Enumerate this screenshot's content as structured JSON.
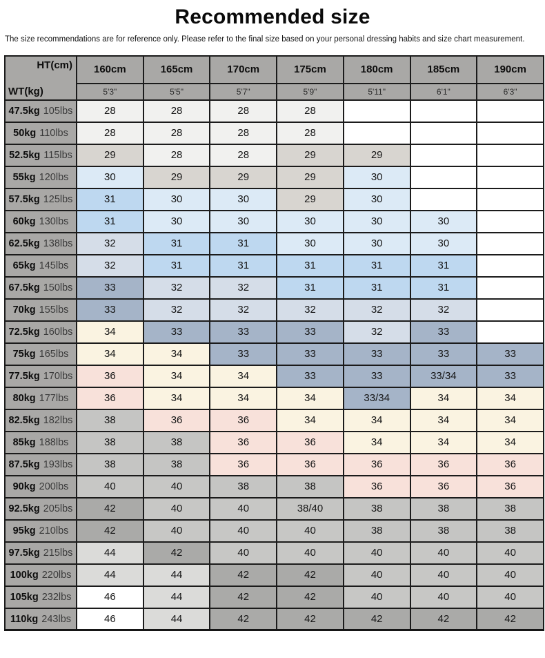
{
  "page": {
    "title": "Recommended size",
    "disclaimer": "The size recommendations are for reference only. Please refer to the final size based on your personal dressing habits and size chart measurement."
  },
  "table": {
    "corner": {
      "ht_label": "HT(cm)",
      "wt_label": "WT(kg)"
    },
    "heights": [
      {
        "cm": "160cm",
        "ft": "5'3\""
      },
      {
        "cm": "165cm",
        "ft": "5'5\""
      },
      {
        "cm": "170cm",
        "ft": "5'7\""
      },
      {
        "cm": "175cm",
        "ft": "5'9\""
      },
      {
        "cm": "180cm",
        "ft": "5'11\""
      },
      {
        "cm": "185cm",
        "ft": "6'1\""
      },
      {
        "cm": "190cm",
        "ft": "6'3\""
      }
    ],
    "rows": [
      {
        "kg": "47.5kg",
        "lbs": "105lbs",
        "sizes": [
          "28",
          "28",
          "28",
          "28",
          "",
          "",
          ""
        ]
      },
      {
        "kg": "50kg",
        "lbs": "110lbs",
        "sizes": [
          "28",
          "28",
          "28",
          "28",
          "",
          "",
          ""
        ]
      },
      {
        "kg": "52.5kg",
        "lbs": "115lbs",
        "sizes": [
          "29",
          "28",
          "28",
          "29",
          "29",
          "",
          ""
        ]
      },
      {
        "kg": "55kg",
        "lbs": "120lbs",
        "sizes": [
          "30",
          "29",
          "29",
          "29",
          "30",
          "",
          ""
        ]
      },
      {
        "kg": "57.5kg",
        "lbs": "125lbs",
        "sizes": [
          "31",
          "30",
          "30",
          "29",
          "30",
          "",
          ""
        ]
      },
      {
        "kg": "60kg",
        "lbs": "130lbs",
        "sizes": [
          "31",
          "30",
          "30",
          "30",
          "30",
          "30",
          ""
        ]
      },
      {
        "kg": "62.5kg",
        "lbs": "138lbs",
        "sizes": [
          "32",
          "31",
          "31",
          "30",
          "30",
          "30",
          ""
        ]
      },
      {
        "kg": "65kg",
        "lbs": "145lbs",
        "sizes": [
          "32",
          "31",
          "31",
          "31",
          "31",
          "31",
          ""
        ]
      },
      {
        "kg": "67.5kg",
        "lbs": "150lbs",
        "sizes": [
          "33",
          "32",
          "32",
          "31",
          "31",
          "31",
          ""
        ]
      },
      {
        "kg": "70kg",
        "lbs": "155lbs",
        "sizes": [
          "33",
          "32",
          "32",
          "32",
          "32",
          "32",
          ""
        ]
      },
      {
        "kg": "72.5kg",
        "lbs": "160lbs",
        "sizes": [
          "34",
          "33",
          "33",
          "33",
          "32",
          "33",
          ""
        ]
      },
      {
        "kg": "75kg",
        "lbs": "165lbs",
        "sizes": [
          "34",
          "34",
          "33",
          "33",
          "33",
          "33",
          "33"
        ]
      },
      {
        "kg": "77.5kg",
        "lbs": "170lbs",
        "sizes": [
          "36",
          "34",
          "34",
          "33",
          "33",
          "33/34",
          "33"
        ]
      },
      {
        "kg": "80kg",
        "lbs": "177lbs",
        "sizes": [
          "36",
          "34",
          "34",
          "34",
          "33/34",
          "34",
          "34"
        ]
      },
      {
        "kg": "82.5kg",
        "lbs": "182lbs",
        "sizes": [
          "38",
          "36",
          "36",
          "34",
          "34",
          "34",
          "34"
        ]
      },
      {
        "kg": "85kg",
        "lbs": "188lbs",
        "sizes": [
          "38",
          "38",
          "36",
          "36",
          "34",
          "34",
          "34"
        ]
      },
      {
        "kg": "87.5kg",
        "lbs": "193lbs",
        "sizes": [
          "38",
          "38",
          "36",
          "36",
          "36",
          "36",
          "36"
        ]
      },
      {
        "kg": "90kg",
        "lbs": "200lbs",
        "sizes": [
          "40",
          "40",
          "38",
          "38",
          "36",
          "36",
          "36"
        ]
      },
      {
        "kg": "92.5kg",
        "lbs": "205lbs",
        "sizes": [
          "42",
          "40",
          "40",
          "38/40",
          "38",
          "38",
          "38"
        ]
      },
      {
        "kg": "95kg",
        "lbs": "210lbs",
        "sizes": [
          "42",
          "40",
          "40",
          "40",
          "38",
          "38",
          "38"
        ]
      },
      {
        "kg": "97.5kg",
        "lbs": "215lbs",
        "sizes": [
          "44",
          "42",
          "40",
          "40",
          "40",
          "40",
          "40"
        ]
      },
      {
        "kg": "100kg",
        "lbs": "220lbs",
        "sizes": [
          "44",
          "44",
          "42",
          "42",
          "40",
          "40",
          "40"
        ]
      },
      {
        "kg": "105kg",
        "lbs": "232lbs",
        "sizes": [
          "46",
          "44",
          "42",
          "42",
          "40",
          "40",
          "40"
        ]
      },
      {
        "kg": "110kg",
        "lbs": "243lbs",
        "sizes": [
          "46",
          "44",
          "42",
          "42",
          "42",
          "42",
          "42"
        ]
      }
    ],
    "size_colors": {
      "28": "#f1f1ef",
      "29": "#d8d5d0",
      "30": "#dceaf6",
      "31": "#bed8f0",
      "32": "#d5dde8",
      "33": "#a5b4c8",
      "33/34": "#a5b4c8",
      "34": "#faf3e1",
      "36": "#f8e1da",
      "38": "#c5c5c3",
      "38/40": "#c5c5c3",
      "40": "#c7c7c5",
      "42": "#aaaaa8",
      "44": "#dbdbd9",
      "46": "#ffffff"
    },
    "empty_cell_color": "#ffffff",
    "header_bg": "#a9a8a6",
    "border_color": "#1b1b1b"
  }
}
